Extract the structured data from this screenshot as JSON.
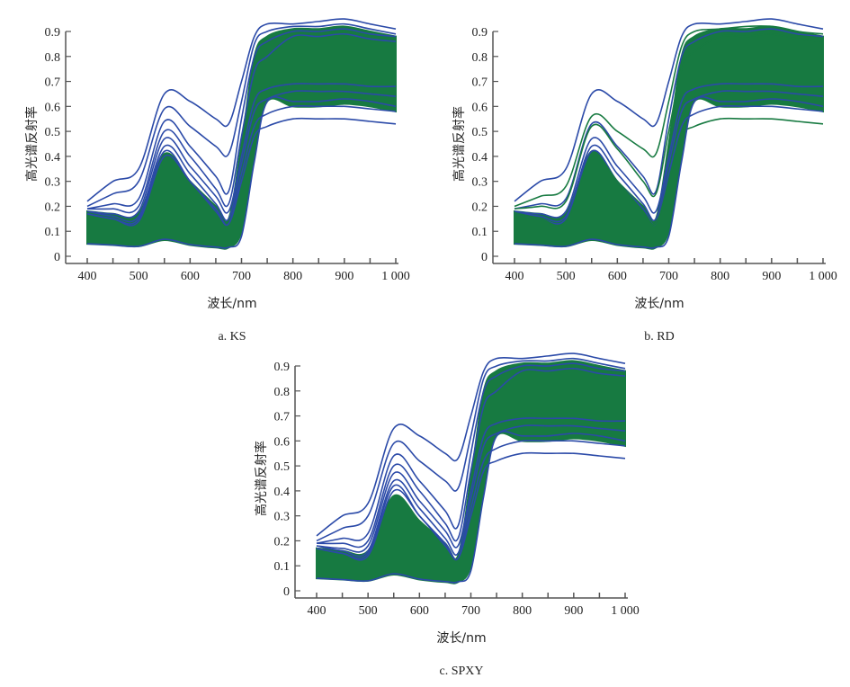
{
  "colors": {
    "blue": "#2b4aa8",
    "green": "#177a41",
    "axis": "#555555"
  },
  "chart_data": [
    {
      "id": "ks",
      "type": "line",
      "caption": "a.  KS",
      "xlabel": "波长/nm",
      "ylabel": "高光谱反射率",
      "xlim": [
        400,
        1000
      ],
      "ylim": [
        0,
        0.9
      ],
      "xticks": [
        "400",
        "500",
        "600",
        "700",
        "800",
        "900",
        "1 000"
      ],
      "yticks": [
        "0",
        "0.1",
        "0.2",
        "0.3",
        "0.4",
        "0.5",
        "0.6",
        "0.7",
        "0.8",
        "0.9"
      ],
      "x": [
        400,
        450,
        500,
        550,
        600,
        650,
        675,
        700,
        725,
        750,
        800,
        850,
        900,
        950,
        1000
      ],
      "band": {
        "name": "samples (green)",
        "upper": [
          0.18,
          0.17,
          0.17,
          0.41,
          0.3,
          0.2,
          0.15,
          0.45,
          0.8,
          0.88,
          0.91,
          0.91,
          0.92,
          0.9,
          0.88
        ],
        "lower": [
          0.05,
          0.045,
          0.04,
          0.065,
          0.045,
          0.035,
          0.035,
          0.1,
          0.4,
          0.62,
          0.6,
          0.6,
          0.61,
          0.6,
          0.58
        ]
      },
      "series": [
        {
          "name": "blue-1",
          "color": "blue",
          "values": [
            0.22,
            0.3,
            0.35,
            0.65,
            0.62,
            0.55,
            0.53,
            0.7,
            0.88,
            0.93,
            0.93,
            0.94,
            0.95,
            0.93,
            0.91
          ]
        },
        {
          "name": "blue-2",
          "color": "blue",
          "values": [
            0.2,
            0.25,
            0.3,
            0.59,
            0.52,
            0.44,
            0.41,
            0.62,
            0.85,
            0.9,
            0.92,
            0.92,
            0.93,
            0.91,
            0.89
          ]
        },
        {
          "name": "blue-3",
          "color": "blue",
          "values": [
            0.19,
            0.21,
            0.23,
            0.54,
            0.44,
            0.32,
            0.26,
            0.55,
            0.8,
            0.86,
            0.9,
            0.9,
            0.91,
            0.89,
            0.88
          ]
        },
        {
          "name": "blue-4",
          "color": "blue",
          "values": [
            0.19,
            0.19,
            0.2,
            0.5,
            0.4,
            0.27,
            0.21,
            0.48,
            0.74,
            0.8,
            0.88,
            0.88,
            0.89,
            0.87,
            0.86
          ]
        },
        {
          "name": "blue-5",
          "color": "blue",
          "values": [
            0.18,
            0.17,
            0.18,
            0.47,
            0.36,
            0.24,
            0.18,
            0.4,
            0.62,
            0.67,
            0.69,
            0.69,
            0.69,
            0.68,
            0.68
          ]
        },
        {
          "name": "blue-6",
          "color": "blue",
          "values": [
            0.18,
            0.16,
            0.16,
            0.44,
            0.33,
            0.21,
            0.15,
            0.37,
            0.58,
            0.63,
            0.66,
            0.66,
            0.66,
            0.65,
            0.64
          ]
        },
        {
          "name": "blue-7",
          "color": "blue",
          "values": [
            0.17,
            0.15,
            0.15,
            0.42,
            0.3,
            0.19,
            0.13,
            0.33,
            0.52,
            0.57,
            0.6,
            0.6,
            0.6,
            0.59,
            0.58
          ]
        },
        {
          "name": "blue-8",
          "color": "blue",
          "values": [
            0.17,
            0.15,
            0.14,
            0.4,
            0.3,
            0.18,
            0.13,
            0.3,
            0.48,
            0.52,
            0.55,
            0.55,
            0.55,
            0.54,
            0.53
          ]
        },
        {
          "name": "blue-9",
          "color": "blue",
          "values": [
            0.05,
            0.045,
            0.04,
            0.068,
            0.047,
            0.037,
            0.036,
            0.08,
            0.38,
            0.62,
            0.62,
            0.62,
            0.63,
            0.62,
            0.6
          ]
        }
      ]
    },
    {
      "id": "rd",
      "type": "line",
      "caption": "b.  RD",
      "xlabel": "波长/nm",
      "ylabel": "高光谱反射率",
      "xlim": [
        400,
        1000
      ],
      "ylim": [
        0,
        0.9
      ],
      "xticks": [
        "400",
        "500",
        "600",
        "700",
        "800",
        "900",
        "1 000"
      ],
      "yticks": [
        "0",
        "0.1",
        "0.2",
        "0.3",
        "0.4",
        "0.5",
        "0.6",
        "0.7",
        "0.8",
        "0.9"
      ],
      "x": [
        400,
        450,
        500,
        550,
        600,
        650,
        675,
        700,
        725,
        750,
        800,
        850,
        900,
        950,
        1000
      ],
      "band": {
        "name": "samples (green)",
        "upper": [
          0.18,
          0.17,
          0.17,
          0.42,
          0.3,
          0.2,
          0.15,
          0.45,
          0.8,
          0.88,
          0.91,
          0.91,
          0.92,
          0.9,
          0.88
        ],
        "lower": [
          0.05,
          0.045,
          0.04,
          0.065,
          0.045,
          0.035,
          0.035,
          0.1,
          0.4,
          0.62,
          0.6,
          0.6,
          0.61,
          0.6,
          0.58
        ]
      },
      "series": [
        {
          "name": "blue-1",
          "color": "blue",
          "values": [
            0.22,
            0.3,
            0.35,
            0.65,
            0.62,
            0.55,
            0.53,
            0.7,
            0.88,
            0.93,
            0.93,
            0.94,
            0.95,
            0.93,
            0.91
          ]
        },
        {
          "name": "green-1",
          "color": "green",
          "values": [
            0.2,
            0.24,
            0.28,
            0.56,
            0.5,
            0.43,
            0.41,
            0.62,
            0.84,
            0.9,
            0.91,
            0.92,
            0.92,
            0.9,
            0.89
          ]
        },
        {
          "name": "blue-3",
          "color": "blue",
          "values": [
            0.19,
            0.21,
            0.23,
            0.53,
            0.44,
            0.32,
            0.26,
            0.55,
            0.8,
            0.86,
            0.9,
            0.9,
            0.91,
            0.89,
            0.88
          ]
        },
        {
          "name": "green-2",
          "color": "green",
          "values": [
            0.19,
            0.2,
            0.22,
            0.52,
            0.43,
            0.3,
            0.25,
            0.5,
            0.75,
            0.82,
            0.88,
            0.88,
            0.89,
            0.87,
            0.86
          ]
        },
        {
          "name": "blue-5",
          "color": "blue",
          "values": [
            0.18,
            0.17,
            0.18,
            0.47,
            0.36,
            0.24,
            0.18,
            0.4,
            0.62,
            0.67,
            0.69,
            0.69,
            0.69,
            0.68,
            0.68
          ]
        },
        {
          "name": "blue-6",
          "color": "blue",
          "values": [
            0.18,
            0.16,
            0.16,
            0.44,
            0.33,
            0.21,
            0.15,
            0.37,
            0.58,
            0.63,
            0.66,
            0.66,
            0.66,
            0.65,
            0.64
          ]
        },
        {
          "name": "blue-7",
          "color": "blue",
          "values": [
            0.17,
            0.15,
            0.15,
            0.42,
            0.3,
            0.19,
            0.13,
            0.33,
            0.52,
            0.57,
            0.6,
            0.6,
            0.6,
            0.59,
            0.58
          ]
        },
        {
          "name": "green-3",
          "color": "green",
          "values": [
            0.17,
            0.15,
            0.14,
            0.4,
            0.3,
            0.18,
            0.13,
            0.3,
            0.48,
            0.52,
            0.55,
            0.55,
            0.55,
            0.54,
            0.53
          ]
        },
        {
          "name": "blue-9",
          "color": "blue",
          "values": [
            0.05,
            0.045,
            0.04,
            0.068,
            0.047,
            0.037,
            0.036,
            0.08,
            0.38,
            0.62,
            0.62,
            0.62,
            0.63,
            0.62,
            0.6
          ]
        }
      ]
    },
    {
      "id": "spxy",
      "type": "line",
      "caption": "c.  SPXY",
      "xlabel": "波长/nm",
      "ylabel": "高光谱反射率",
      "xlim": [
        400,
        1000
      ],
      "ylim": [
        0,
        0.9
      ],
      "xticks": [
        "400",
        "500",
        "600",
        "700",
        "800",
        "900",
        "1 000"
      ],
      "yticks": [
        "0",
        "0.1",
        "0.2",
        "0.3",
        "0.4",
        "0.5",
        "0.6",
        "0.7",
        "0.8",
        "0.9"
      ],
      "x": [
        400,
        450,
        500,
        550,
        600,
        650,
        675,
        700,
        725,
        750,
        800,
        850,
        900,
        950,
        1000
      ],
      "band": {
        "name": "samples (green)",
        "upper": [
          0.17,
          0.16,
          0.16,
          0.38,
          0.28,
          0.19,
          0.14,
          0.45,
          0.8,
          0.88,
          0.91,
          0.91,
          0.92,
          0.9,
          0.88
        ],
        "lower": [
          0.05,
          0.045,
          0.04,
          0.065,
          0.045,
          0.035,
          0.035,
          0.1,
          0.4,
          0.62,
          0.6,
          0.6,
          0.61,
          0.6,
          0.58
        ]
      },
      "series": [
        {
          "name": "blue-1",
          "color": "blue",
          "values": [
            0.22,
            0.3,
            0.35,
            0.65,
            0.62,
            0.55,
            0.53,
            0.7,
            0.88,
            0.93,
            0.93,
            0.94,
            0.95,
            0.93,
            0.91
          ]
        },
        {
          "name": "blue-2",
          "color": "blue",
          "values": [
            0.2,
            0.25,
            0.3,
            0.59,
            0.52,
            0.44,
            0.41,
            0.62,
            0.85,
            0.9,
            0.92,
            0.92,
            0.93,
            0.91,
            0.89
          ]
        },
        {
          "name": "blue-3",
          "color": "blue",
          "values": [
            0.19,
            0.21,
            0.23,
            0.54,
            0.44,
            0.32,
            0.26,
            0.55,
            0.8,
            0.86,
            0.9,
            0.9,
            0.91,
            0.89,
            0.88
          ]
        },
        {
          "name": "blue-4",
          "color": "blue",
          "values": [
            0.19,
            0.19,
            0.2,
            0.5,
            0.4,
            0.27,
            0.21,
            0.48,
            0.74,
            0.8,
            0.88,
            0.88,
            0.89,
            0.87,
            0.86
          ]
        },
        {
          "name": "blue-5",
          "color": "blue",
          "values": [
            0.18,
            0.17,
            0.18,
            0.47,
            0.36,
            0.24,
            0.18,
            0.4,
            0.62,
            0.67,
            0.69,
            0.69,
            0.69,
            0.68,
            0.68
          ]
        },
        {
          "name": "blue-6",
          "color": "blue",
          "values": [
            0.18,
            0.16,
            0.16,
            0.44,
            0.33,
            0.21,
            0.15,
            0.37,
            0.58,
            0.63,
            0.66,
            0.66,
            0.66,
            0.65,
            0.64
          ]
        },
        {
          "name": "blue-7",
          "color": "blue",
          "values": [
            0.17,
            0.15,
            0.15,
            0.42,
            0.3,
            0.19,
            0.13,
            0.33,
            0.52,
            0.57,
            0.6,
            0.6,
            0.6,
            0.59,
            0.58
          ]
        },
        {
          "name": "blue-8",
          "color": "blue",
          "values": [
            0.17,
            0.15,
            0.14,
            0.4,
            0.3,
            0.18,
            0.13,
            0.3,
            0.48,
            0.52,
            0.55,
            0.55,
            0.55,
            0.54,
            0.53
          ]
        },
        {
          "name": "blue-9",
          "color": "blue",
          "values": [
            0.05,
            0.045,
            0.04,
            0.068,
            0.047,
            0.037,
            0.036,
            0.08,
            0.38,
            0.62,
            0.62,
            0.62,
            0.63,
            0.62,
            0.6
          ]
        }
      ]
    }
  ]
}
